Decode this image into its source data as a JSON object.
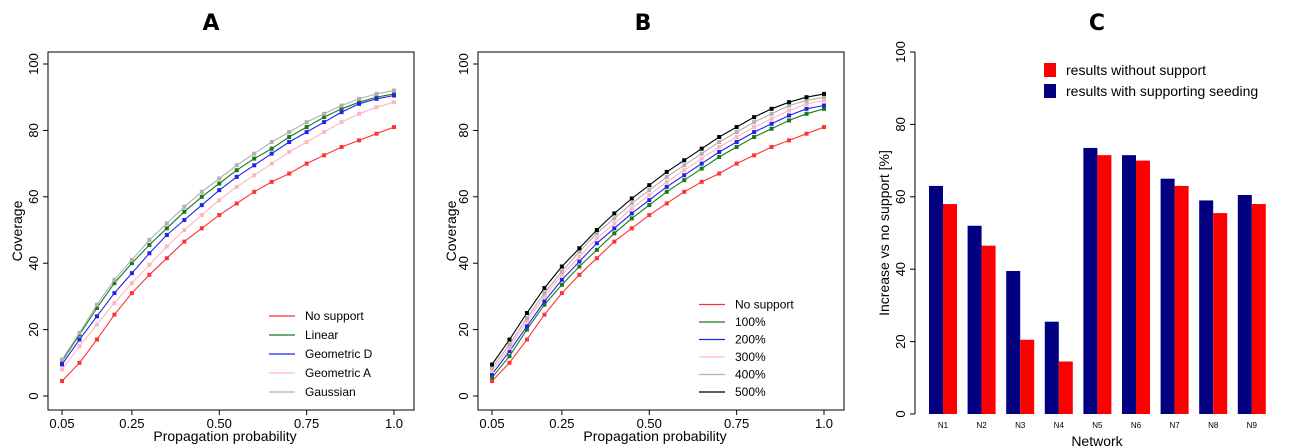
{
  "chart_data": [
    {
      "panel": "A",
      "type": "line",
      "xlabel": "Propagation probability",
      "ylabel": "Coverage",
      "xlim": [
        0.05,
        1.0
      ],
      "ylim": [
        0,
        100
      ],
      "x_ticks": [
        "0.05",
        "0.25",
        "0.50",
        "0.75",
        "1.0"
      ],
      "y_ticks": [
        "0",
        "20",
        "40",
        "60",
        "80",
        "100"
      ],
      "legend_position": "bottom-right",
      "x": [
        0.05,
        0.1,
        0.15,
        0.2,
        0.25,
        0.3,
        0.35,
        0.4,
        0.45,
        0.5,
        0.55,
        0.6,
        0.65,
        0.7,
        0.75,
        0.8,
        0.85,
        0.9,
        0.95,
        1.0
      ],
      "series": [
        {
          "name": "No support",
          "color": "#ff3333",
          "values": [
            4.5,
            10,
            17,
            24.5,
            31,
            36.5,
            41.5,
            46.5,
            50.5,
            54.5,
            58,
            61.5,
            64.5,
            67,
            70,
            72.5,
            75,
            77,
            79,
            81
          ]
        },
        {
          "name": "Linear",
          "color": "#1a7a1a",
          "values": [
            10.5,
            18.5,
            26.5,
            34,
            40,
            45.5,
            50.5,
            55.5,
            60,
            64,
            68,
            71.5,
            74.5,
            78,
            81,
            84,
            86.5,
            88.5,
            90,
            91
          ]
        },
        {
          "name": "Geometric D",
          "color": "#2222ee",
          "values": [
            9.5,
            17,
            24,
            31,
            37,
            43,
            48.5,
            53,
            57.5,
            62,
            66,
            69.5,
            73,
            76.5,
            79.5,
            82.5,
            85.5,
            88,
            89.5,
            90.5
          ]
        },
        {
          "name": "Geometric A",
          "color": "#ffb6c1",
          "values": [
            8,
            15,
            21.5,
            28,
            34,
            39.5,
            45,
            50,
            54.5,
            59,
            63,
            66.5,
            70,
            73.5,
            76.5,
            79.5,
            82.5,
            85,
            87,
            88.5
          ]
        },
        {
          "name": "Gaussian",
          "color": "#b0b0b0",
          "values": [
            11,
            19,
            27.5,
            35,
            41,
            47,
            52,
            57,
            61.5,
            65.5,
            69.5,
            73,
            76.5,
            79.5,
            82.5,
            85,
            87.5,
            89.5,
            91,
            92
          ]
        }
      ]
    },
    {
      "panel": "B",
      "type": "line",
      "xlabel": "Propagation probability",
      "ylabel": "Coverage",
      "xlim": [
        0.05,
        1.0
      ],
      "ylim": [
        0,
        100
      ],
      "x_ticks": [
        "0.05",
        "0.25",
        "0.50",
        "0.75",
        "1.0"
      ],
      "y_ticks": [
        "0",
        "20",
        "40",
        "60",
        "80",
        "100"
      ],
      "legend_position": "bottom-right",
      "x": [
        0.05,
        0.1,
        0.15,
        0.2,
        0.25,
        0.3,
        0.35,
        0.4,
        0.45,
        0.5,
        0.55,
        0.6,
        0.65,
        0.7,
        0.75,
        0.8,
        0.85,
        0.9,
        0.95,
        1.0
      ],
      "series": [
        {
          "name": "No support",
          "color": "#ff3333",
          "values": [
            4.5,
            10,
            17,
            24.5,
            31,
            36.5,
            41.5,
            46.5,
            50.5,
            54.5,
            58,
            61.5,
            64.5,
            67,
            70,
            72.5,
            75,
            77,
            79,
            81
          ]
        },
        {
          "name": "100%",
          "color": "#1a7a1a",
          "values": [
            5.5,
            12,
            20,
            27.5,
            33.5,
            39,
            44,
            49,
            53.5,
            57.5,
            61.5,
            65,
            68.5,
            72,
            75,
            78,
            80.5,
            83,
            85,
            86.5
          ]
        },
        {
          "name": "200%",
          "color": "#2222ee",
          "values": [
            6.5,
            13.5,
            21,
            28.5,
            35,
            40.5,
            46,
            50.5,
            55,
            59,
            63,
            66.5,
            70,
            73.5,
            76.5,
            79.5,
            82,
            84.5,
            86.5,
            87.5
          ]
        },
        {
          "name": "300%",
          "color": "#ffb6c1",
          "values": [
            7.5,
            14.5,
            22.5,
            30,
            36.5,
            42,
            47.5,
            52,
            56.5,
            60.5,
            64.5,
            68,
            71.5,
            75,
            78,
            81,
            83.5,
            86,
            88,
            89
          ]
        },
        {
          "name": "400%",
          "color": "#b0b0b0",
          "values": [
            8.5,
            15.5,
            23.5,
            31,
            37.5,
            43.5,
            49,
            53.5,
            58,
            62,
            66,
            69.5,
            73,
            76.5,
            79.5,
            82.5,
            85,
            87.5,
            89,
            90
          ]
        },
        {
          "name": "500%",
          "color": "#000000",
          "values": [
            9.5,
            17,
            25,
            32.5,
            39,
            44.5,
            50,
            55,
            59.5,
            63.5,
            67.5,
            71,
            74.5,
            78,
            81,
            84,
            86.5,
            88.5,
            90,
            91
          ]
        }
      ]
    },
    {
      "panel": "C",
      "type": "bar",
      "xlabel": "Network",
      "ylabel": "Increase vs no support [%]",
      "ylim": [
        0,
        100
      ],
      "y_ticks": [
        "0",
        "20",
        "40",
        "60",
        "80",
        "100"
      ],
      "categories": [
        "N1",
        "N2",
        "N3",
        "N4",
        "N5",
        "N6",
        "N7",
        "N8",
        "N9"
      ],
      "legend_position": "top-right",
      "series": [
        {
          "name": "results with supporting seeding",
          "color": "#000080",
          "values": [
            63,
            52,
            39.5,
            25.5,
            73.5,
            71.5,
            65,
            59,
            60.5
          ]
        },
        {
          "name": "results without support",
          "color": "#ff0000",
          "values": [
            58,
            46.5,
            20.5,
            14.5,
            71.5,
            70,
            63,
            55.5,
            58
          ]
        }
      ],
      "legend_order": [
        "results without support",
        "results with supporting seeding"
      ]
    }
  ]
}
